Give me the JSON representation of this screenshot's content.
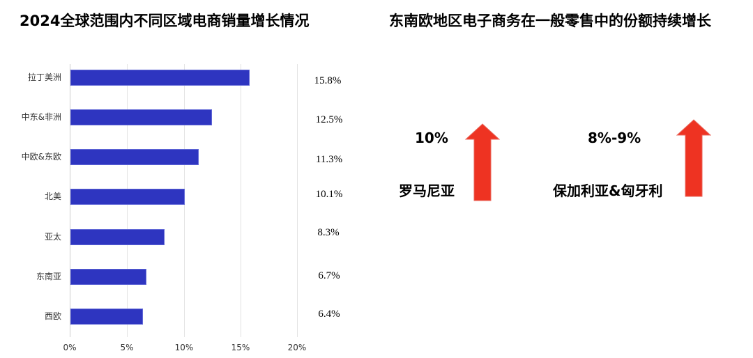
{
  "left_panel": {
    "title": "2024全球范围内不同区域电商销量增长情况"
  },
  "right_panel": {
    "title": "东南欧地区电子商务在一般零售中的份额持续增长",
    "items": [
      {
        "value": "10%",
        "label": "罗马尼亚",
        "icon": "up-arrow-icon",
        "color": "#ee3322"
      },
      {
        "value": "8%-9%",
        "label": "保加利亚&匈牙利",
        "icon": "up-arrow-icon",
        "color": "#ee3322"
      }
    ]
  },
  "chart_data": {
    "type": "bar",
    "orientation": "horizontal",
    "title": "2024全球范围内不同区域电商销量增长情况",
    "xlabel": "",
    "ylabel": "",
    "categories": [
      "拉丁美洲",
      "中东&非洲",
      "中欧&东欧",
      "北美",
      "亚太",
      "东南亚",
      "西欧"
    ],
    "values": [
      15.8,
      12.5,
      11.3,
      10.1,
      8.3,
      6.7,
      6.4
    ],
    "value_labels": [
      "15.8%",
      "12.5%",
      "11.3%",
      "10.1%",
      "8.3%",
      "6.7%",
      "6.4%"
    ],
    "x_ticks": [
      "0%",
      "5%",
      "10%",
      "15%",
      "20%"
    ],
    "xlim": [
      0,
      20
    ],
    "unit": "%",
    "grid": true,
    "legend": "none",
    "bar_color": "#2e35c0"
  }
}
